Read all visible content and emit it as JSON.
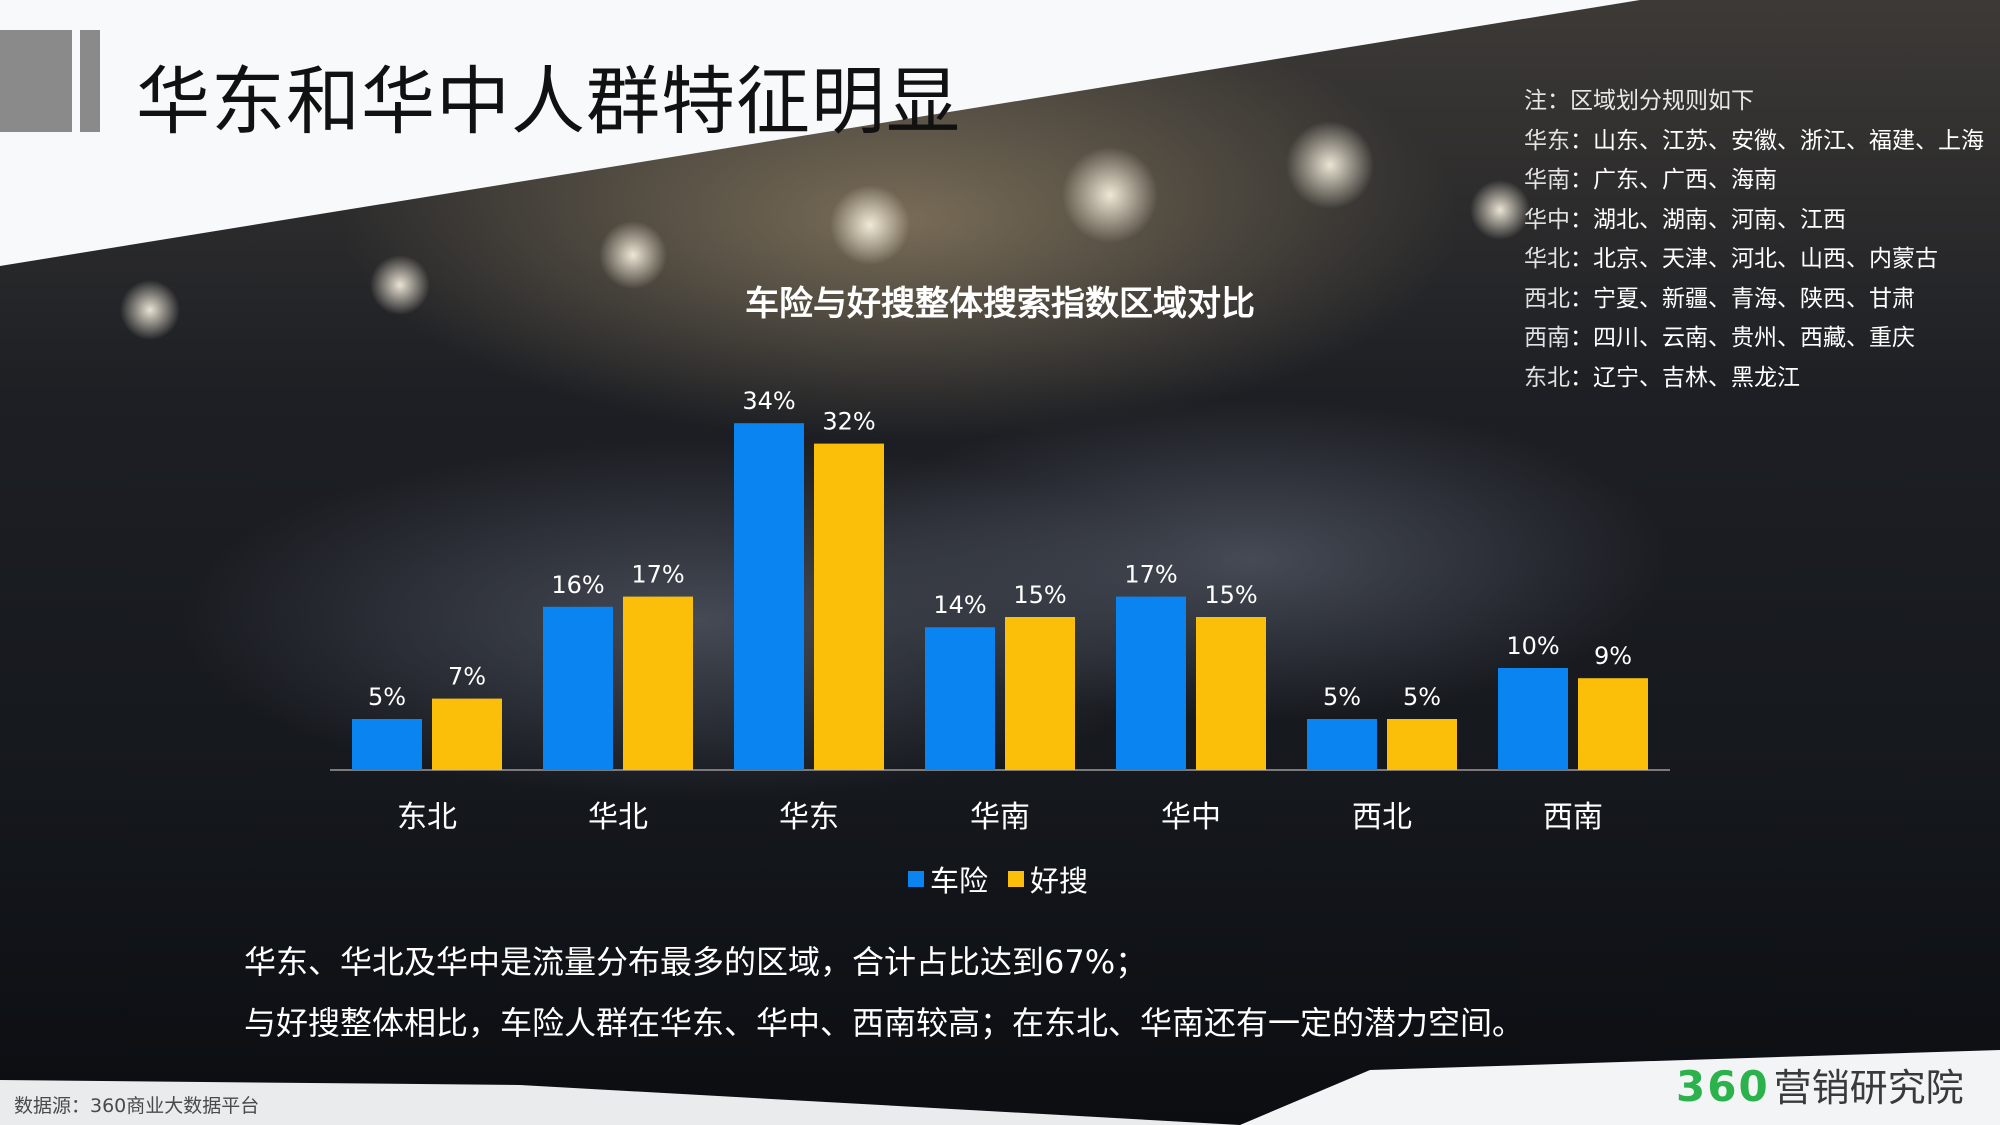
{
  "slide": {
    "title": "华东和华中人群特征明显",
    "notes_title": "注：区域划分规则如下",
    "region_notes": [
      {
        "region": "华东",
        "provinces": "：山东、江苏、安徽、浙江、福建、上海"
      },
      {
        "region": "华南",
        "provinces": "：广东、广西、海南"
      },
      {
        "region": "华中",
        "provinces": "：湖北、湖南、河南、江西"
      },
      {
        "region": "华北",
        "provinces": "：北京、天津、河北、山西、内蒙古"
      },
      {
        "region": "西北",
        "provinces": "：宁夏、新疆、青海、陕西、甘肃"
      },
      {
        "region": "西南",
        "provinces": "：四川、云南、贵州、西藏、重庆"
      },
      {
        "region": "东北",
        "provinces": "：辽宁、吉林、黑龙江"
      }
    ],
    "summary_lines": [
      "华东、华北及华中是流量分布最多的区域，合计占比达到67%；",
      "与好搜整体相比，车险人群在华东、华中、西南较高；在东北、华南还有一定的潜力空间。"
    ],
    "source": "数据源：360商业大数据平台",
    "brand_number": "360",
    "brand_name": "营销研究院",
    "colors": {
      "series1": "#0a84f0",
      "series2": "#fbbf0a",
      "title_bar": "#808080",
      "brand": "#2bb24c"
    }
  },
  "chart_data": {
    "type": "bar",
    "title": "车险与好搜整体搜索指数区域对比",
    "categories": [
      "东北",
      "华北",
      "华东",
      "华南",
      "华中",
      "西北",
      "西南"
    ],
    "series": [
      {
        "name": "车险",
        "values": [
          5,
          16,
          34,
          14,
          17,
          5,
          10
        ],
        "labels": [
          "5%",
          "16%",
          "34%",
          "14%",
          "17%",
          "5%",
          "10%"
        ]
      },
      {
        "name": "好搜",
        "values": [
          7,
          17,
          32,
          15,
          15,
          5,
          9
        ],
        "labels": [
          "7%",
          "17%",
          "32%",
          "15%",
          "15%",
          "5%",
          "9%"
        ]
      }
    ],
    "value_unit": "%",
    "grid": false,
    "legend": "bottom"
  }
}
